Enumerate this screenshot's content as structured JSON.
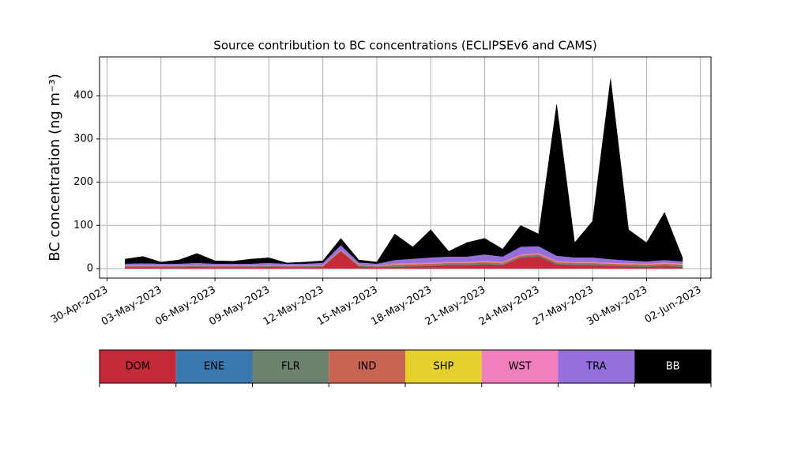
{
  "chart_data": {
    "type": "stacked_area",
    "title": "Source contribution to BC concentrations (ECLIPSEv6 and CAMS)",
    "y_label": "BC concentration (ng m⁻³)",
    "x": [
      "2023-05-01",
      "2023-05-02",
      "2023-05-03",
      "2023-05-04",
      "2023-05-05",
      "2023-05-06",
      "2023-05-07",
      "2023-05-08",
      "2023-05-09",
      "2023-05-10",
      "2023-05-11",
      "2023-05-12",
      "2023-05-13",
      "2023-05-14",
      "2023-05-15",
      "2023-05-16",
      "2023-05-17",
      "2023-05-18",
      "2023-05-19",
      "2023-05-20",
      "2023-05-21",
      "2023-05-22",
      "2023-05-23",
      "2023-05-24",
      "2023-05-25",
      "2023-05-26",
      "2023-05-27",
      "2023-05-28",
      "2023-05-29",
      "2023-05-30",
      "2023-05-31",
      "2023-06-01"
    ],
    "series": [
      {
        "name": "DOM",
        "color": "#c62a3a",
        "values": [
          3,
          3,
          3,
          3,
          4,
          3,
          3,
          3,
          4,
          3,
          3,
          4,
          40,
          5,
          3,
          4,
          5,
          6,
          8,
          8,
          10,
          8,
          25,
          28,
          10,
          8,
          8,
          6,
          5,
          4,
          6,
          4
        ]
      },
      {
        "name": "ENE",
        "color": "#3a78b0",
        "values": [
          0.5,
          0.5,
          0.5,
          0.5,
          0.5,
          0.5,
          0.5,
          0.5,
          0.5,
          0.5,
          0.5,
          0.5,
          0.5,
          0.5,
          0.5,
          0.5,
          0.5,
          0.5,
          0.5,
          0.5,
          0.5,
          0.5,
          0.5,
          0.5,
          0.5,
          0.5,
          0.5,
          0.5,
          0.5,
          0.5,
          0.5,
          0.5
        ]
      },
      {
        "name": "FLR",
        "color": "#6e8270",
        "values": [
          1,
          1,
          1,
          1,
          1,
          1,
          1,
          1,
          1,
          1,
          1,
          1,
          1,
          1,
          1,
          2,
          2,
          2,
          2,
          2,
          2,
          2,
          2,
          2,
          2,
          2,
          2,
          2,
          2,
          2,
          2,
          2
        ]
      },
      {
        "name": "IND",
        "color": "#c86452",
        "values": [
          1.5,
          1.5,
          1.5,
          1.5,
          1.5,
          1.5,
          1.5,
          1.5,
          1.5,
          1.5,
          1.5,
          1.5,
          1.5,
          1.5,
          1.5,
          3,
          3,
          3,
          3,
          3,
          3,
          3,
          3,
          3,
          3,
          3,
          3,
          3,
          3,
          3,
          3,
          3
        ]
      },
      {
        "name": "SHP",
        "color": "#e6d02e",
        "values": [
          0.5,
          0.5,
          0.5,
          0.5,
          0.5,
          0.5,
          0.5,
          0.5,
          0.5,
          0.5,
          0.5,
          0.5,
          0.5,
          0.5,
          0.5,
          0.5,
          0.5,
          0.5,
          0.5,
          0.5,
          0.5,
          0.5,
          0.5,
          0.5,
          0.5,
          0.5,
          0.5,
          0.5,
          0.5,
          0.5,
          0.5,
          0.5
        ]
      },
      {
        "name": "WST",
        "color": "#f07fbd",
        "values": [
          1,
          1,
          1,
          1,
          1,
          1,
          1,
          1,
          1,
          1,
          1,
          1,
          1,
          1,
          1,
          2,
          2,
          2,
          2,
          2,
          2,
          2,
          2,
          2,
          2,
          2,
          2,
          2,
          2,
          2,
          2,
          2
        ]
      },
      {
        "name": "TRA",
        "color": "#9370db",
        "values": [
          4,
          5,
          4,
          4,
          5,
          4,
          4,
          4,
          5,
          4,
          4,
          5,
          10,
          5,
          4,
          8,
          10,
          12,
          12,
          12,
          15,
          12,
          18,
          16,
          12,
          10,
          10,
          8,
          6,
          5,
          6,
          5
        ]
      },
      {
        "name": "BB",
        "color": "#000000",
        "values": [
          10.5,
          15.5,
          3.5,
          8.5,
          21.5,
          6.5,
          5.5,
          10.5,
          11.5,
          1.5,
          3.5,
          4.5,
          15.5,
          5.5,
          3.5,
          60,
          27,
          64,
          12,
          32,
          37,
          17,
          49,
          28,
          350,
          34,
          84,
          418,
          71,
          43,
          110,
          8
        ]
      }
    ],
    "xlim": [
      "2023-04-29T14:00",
      "2023-06-02T14:00"
    ],
    "xticks": [
      {
        "value": "2023-04-30",
        "label": "30-Apr-2023"
      },
      {
        "value": "2023-05-03",
        "label": "03-May-2023"
      },
      {
        "value": "2023-05-06",
        "label": "06-May-2023"
      },
      {
        "value": "2023-05-09",
        "label": "09-May-2023"
      },
      {
        "value": "2023-05-12",
        "label": "12-May-2023"
      },
      {
        "value": "2023-05-15",
        "label": "15-May-2023"
      },
      {
        "value": "2023-05-18",
        "label": "18-May-2023"
      },
      {
        "value": "2023-05-21",
        "label": "21-May-2023"
      },
      {
        "value": "2023-05-24",
        "label": "24-May-2023"
      },
      {
        "value": "2023-05-27",
        "label": "27-May-2023"
      },
      {
        "value": "2023-05-30",
        "label": "30-May-2023"
      },
      {
        "value": "2023-06-02",
        "label": "02-Jun-2023"
      }
    ],
    "ylim": [
      -22,
      490
    ],
    "yticks": [
      0,
      100,
      200,
      300,
      400
    ],
    "grid": true
  }
}
